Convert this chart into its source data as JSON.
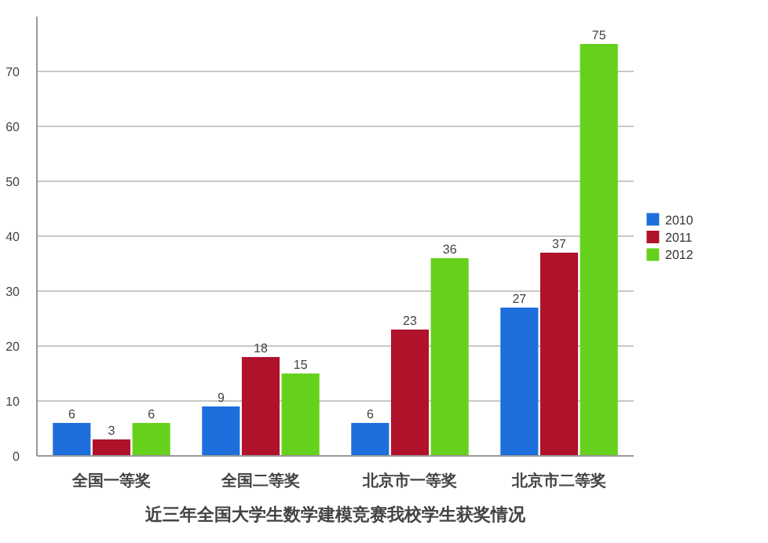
{
  "chart_data": {
    "type": "bar",
    "title": "近三年全国大学生数学建模竞赛我校学生获奖情况",
    "categories": [
      "全国一等奖",
      "全国二等奖",
      "北京市一等奖",
      "北京市二等奖"
    ],
    "series": [
      {
        "name": "2010",
        "color": "#1e6fdc",
        "values": [
          6,
          9,
          6,
          27
        ]
      },
      {
        "name": "2011",
        "color": "#b0112b",
        "values": [
          3,
          18,
          23,
          37
        ]
      },
      {
        "name": "2012",
        "color": "#66d11c",
        "values": [
          6,
          15,
          36,
          75
        ]
      }
    ],
    "ylim": [
      0,
      80
    ],
    "yticks": [
      0,
      10,
      20,
      30,
      40,
      50,
      60,
      70
    ],
    "grid": "y",
    "legend": "right",
    "data_labels": true
  }
}
